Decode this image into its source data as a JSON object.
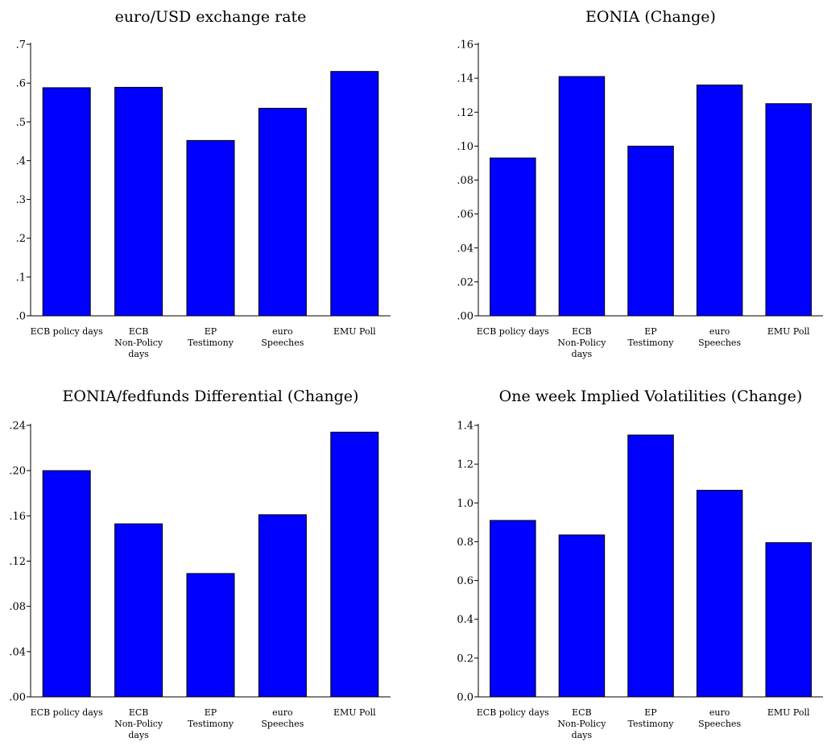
{
  "chart_data": [
    {
      "type": "bar",
      "title": "euro/USD exchange rate",
      "categories": [
        [
          "ECB policy days"
        ],
        [
          "ECB",
          "Non-Policy",
          "days"
        ],
        [
          "EP",
          "Testimony"
        ],
        [
          "euro",
          "Speeches"
        ],
        [
          "EMU Poll"
        ]
      ],
      "values": [
        0.588,
        0.589,
        0.452,
        0.535,
        0.63
      ],
      "ylim": [
        0,
        0.7
      ],
      "yticks": [
        0,
        0.1,
        0.2,
        0.3,
        0.4,
        0.5,
        0.6,
        0.7
      ],
      "ytick_labels": [
        ".0",
        ".1",
        ".2",
        ".3",
        ".4",
        ".5",
        ".6",
        ".7"
      ],
      "bar_color": "#0000ff",
      "xlabel": "",
      "ylabel": "",
      "grid": false
    },
    {
      "type": "bar",
      "title": "EONIA (Change)",
      "categories": [
        [
          "ECB policy days"
        ],
        [
          "ECB",
          "Non-Policy",
          "days"
        ],
        [
          "EP",
          "Testimony"
        ],
        [
          "euro",
          "Speeches"
        ],
        [
          "EMU Poll"
        ]
      ],
      "values": [
        0.093,
        0.141,
        0.1,
        0.136,
        0.125
      ],
      "ylim": [
        0,
        0.16
      ],
      "yticks": [
        0,
        0.02,
        0.04,
        0.06,
        0.08,
        0.1,
        0.12,
        0.14,
        0.16
      ],
      "ytick_labels": [
        ".00",
        ".02",
        ".04",
        ".06",
        ".08",
        ".10",
        ".12",
        ".14",
        ".16"
      ],
      "bar_color": "#0000ff",
      "xlabel": "",
      "ylabel": "",
      "grid": false
    },
    {
      "type": "bar",
      "title": "EONIA/fedfunds Differential (Change)",
      "categories": [
        [
          "ECB policy days"
        ],
        [
          "ECB",
          "Non-Policy",
          "days"
        ],
        [
          "EP",
          "Testimony"
        ],
        [
          "euro",
          "Speeches"
        ],
        [
          "EMU Poll"
        ]
      ],
      "values": [
        0.2,
        0.153,
        0.109,
        0.161,
        0.234
      ],
      "ylim": [
        0,
        0.24
      ],
      "yticks": [
        0,
        0.04,
        0.08,
        0.12,
        0.16,
        0.2,
        0.24
      ],
      "ytick_labels": [
        ".00",
        ".04",
        ".08",
        ".12",
        ".16",
        ".20",
        ".24"
      ],
      "bar_color": "#0000ff",
      "xlabel": "",
      "ylabel": "",
      "grid": false
    },
    {
      "type": "bar",
      "title": "One week Implied Volatilities (Change)",
      "categories": [
        [
          "ECB policy days"
        ],
        [
          "ECB",
          "Non-Policy",
          "days"
        ],
        [
          "EP",
          "Testimony"
        ],
        [
          "euro",
          "Speeches"
        ],
        [
          "EMU Poll"
        ]
      ],
      "values": [
        0.91,
        0.835,
        1.35,
        1.065,
        0.795
      ],
      "ylim": [
        0,
        1.4
      ],
      "yticks": [
        0,
        0.2,
        0.4,
        0.6,
        0.8,
        1.0,
        1.2,
        1.4
      ],
      "ytick_labels": [
        "0.0",
        "0.2",
        "0.4",
        "0.6",
        "0.8",
        "1.0",
        "1.2",
        "1.4"
      ],
      "bar_color": "#0000ff",
      "xlabel": "",
      "ylabel": "",
      "grid": false
    }
  ]
}
